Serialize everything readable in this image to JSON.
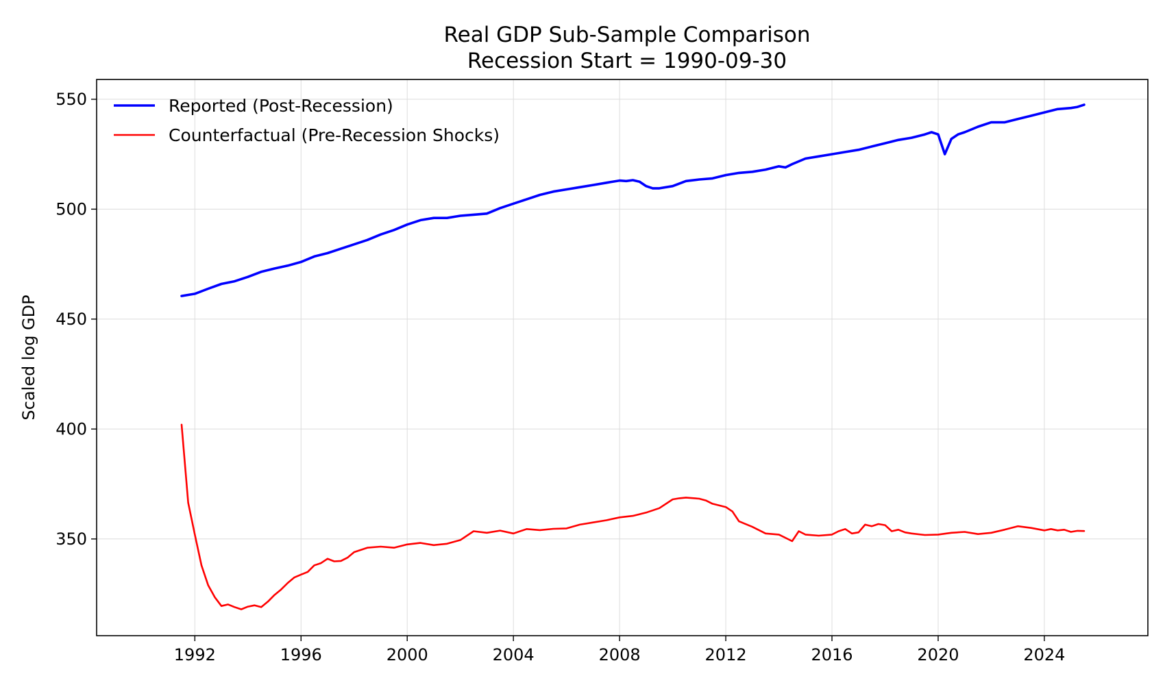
{
  "chart_data": {
    "type": "line",
    "title": "Real GDP Sub-Sample Comparison",
    "subtitle": "Recession Start = 1990-09-30",
    "xlabel": "",
    "ylabel": "Scaled log GDP",
    "xlim": [
      1988.3,
      2027.9
    ],
    "ylim": [
      306,
      559
    ],
    "x_ticks": [
      1992,
      1996,
      2000,
      2004,
      2008,
      2012,
      2016,
      2020,
      2024
    ],
    "y_ticks": [
      350,
      400,
      450,
      500,
      550
    ],
    "grid": true,
    "legend_placement": "top-left",
    "series": [
      {
        "name": "Reported (Post-Recession)",
        "color": "#0000ff",
        "x": [
          1991.5,
          1992,
          1992.5,
          1993,
          1993.5,
          1994,
          1994.5,
          1995,
          1995.5,
          1996,
          1996.5,
          1997,
          1997.5,
          1998,
          1998.5,
          1999,
          1999.5,
          2000,
          2000.5,
          2001,
          2001.5,
          2002,
          2002.5,
          2003,
          2003.5,
          2004,
          2004.5,
          2005,
          2005.5,
          2006,
          2006.5,
          2007,
          2007.5,
          2008,
          2008.25,
          2008.5,
          2008.75,
          2009,
          2009.25,
          2009.5,
          2010,
          2010.5,
          2011,
          2011.5,
          2012,
          2012.5,
          2013,
          2013.5,
          2014,
          2014.25,
          2014.5,
          2015,
          2015.5,
          2016,
          2016.5,
          2017,
          2017.5,
          2018,
          2018.5,
          2019,
          2019.5,
          2019.75,
          2020,
          2020.25,
          2020.5,
          2020.75,
          2021,
          2021.5,
          2022,
          2022.5,
          2023,
          2023.5,
          2024,
          2024.5,
          2025,
          2025.25,
          2025.5
        ],
        "values": [
          460.5,
          461.5,
          463.8,
          466,
          467.2,
          469.2,
          471.5,
          473,
          474.3,
          476,
          478.5,
          480,
          482,
          484,
          486,
          488.5,
          490.5,
          493,
          495,
          496,
          496,
          497,
          497.5,
          498,
          500.5,
          502.5,
          504.5,
          506.5,
          508,
          509,
          510,
          511,
          512,
          513,
          512.8,
          513.2,
          512.5,
          510.5,
          509.5,
          509.5,
          510.5,
          512.8,
          513.5,
          514,
          515.5,
          516.5,
          517,
          518,
          519.5,
          519,
          520.5,
          523,
          524,
          525,
          526,
          527,
          528.5,
          530,
          531.5,
          532.5,
          534,
          535,
          534,
          525,
          532,
          534,
          535,
          537.5,
          539.5,
          539.5,
          541,
          542.5,
          544,
          545.5,
          546,
          546.5,
          547.5
        ]
      },
      {
        "name": "Counterfactual (Pre-Recession Shocks)",
        "color": "#ff0000",
        "x": [
          1991.5,
          1991.75,
          1992,
          1992.25,
          1992.5,
          1992.75,
          1993,
          1993.25,
          1993.5,
          1993.75,
          1994,
          1994.25,
          1994.5,
          1994.75,
          1995,
          1995.25,
          1995.5,
          1995.75,
          1996,
          1996.25,
          1996.5,
          1996.75,
          1997,
          1997.25,
          1997.5,
          1997.75,
          1998,
          1998.5,
          1999,
          1999.5,
          2000,
          2000.5,
          2001,
          2001.5,
          2002,
          2002.5,
          2003,
          2003.5,
          2004,
          2004.5,
          2005,
          2005.5,
          2006,
          2006.5,
          2007,
          2007.5,
          2008,
          2008.5,
          2009,
          2009.5,
          2010,
          2010.25,
          2010.5,
          2011,
          2011.25,
          2011.5,
          2012,
          2012.25,
          2012.5,
          2013,
          2013.5,
          2014,
          2014.5,
          2014.75,
          2015,
          2015.5,
          2016,
          2016.25,
          2016.5,
          2016.75,
          2017,
          2017.25,
          2017.5,
          2017.75,
          2018,
          2018.25,
          2018.5,
          2018.75,
          2019,
          2019.5,
          2020,
          2020.5,
          2021,
          2021.5,
          2022,
          2022.5,
          2023,
          2023.5,
          2024,
          2024.25,
          2024.5,
          2024.75,
          2025,
          2025.25,
          2025.5
        ],
        "values": [
          402,
          366.5,
          352,
          338,
          329,
          323.5,
          319.5,
          320.2,
          319,
          318,
          319.2,
          319.8,
          319,
          321.5,
          324.5,
          327,
          330,
          332.5,
          333.8,
          335,
          338,
          339,
          341,
          339.8,
          340,
          341.5,
          344,
          346,
          346.5,
          346,
          347.5,
          348.2,
          347.2,
          347.8,
          349.5,
          353.5,
          352.8,
          353.8,
          352.5,
          354.5,
          354,
          354.6,
          354.8,
          356.5,
          357.5,
          358.5,
          359.8,
          360.5,
          362,
          364,
          368,
          368.5,
          368.8,
          368.3,
          367.5,
          366,
          364.5,
          362.5,
          358,
          355.5,
          352.5,
          352,
          349,
          353.5,
          352,
          351.5,
          352,
          353.5,
          354.5,
          352.5,
          353,
          356.5,
          355.8,
          356.8,
          356.3,
          353.5,
          354.2,
          353,
          352.5,
          351.8,
          352,
          352.8,
          353.2,
          352.2,
          352.8,
          354.2,
          355.8,
          355,
          353.9,
          354.5,
          353.9,
          354.2,
          353.2,
          353.7,
          353.6
        ]
      }
    ]
  }
}
